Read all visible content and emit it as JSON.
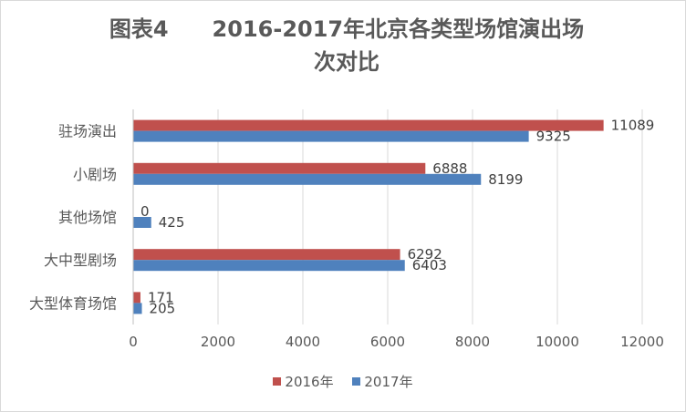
{
  "chart_data": {
    "type": "bar",
    "orientation": "horizontal",
    "title": "图表4　　2016-2017年北京各类型场馆演出场次对比",
    "title_lines": [
      "图表4　　2016-2017年北京各类型场馆演出场",
      "次对比"
    ],
    "categories": [
      "驻场演出",
      "小剧场",
      "其他场馆",
      "大中型剧场",
      "大型体育场馆"
    ],
    "series": [
      {
        "name": "2016年",
        "color": "#c0504d",
        "values": [
          11089,
          6888,
          0,
          6292,
          171
        ]
      },
      {
        "name": "2017年",
        "color": "#4f81bd",
        "values": [
          9325,
          8199,
          425,
          6403,
          205
        ]
      }
    ],
    "x_ticks": [
      "0",
      "2000",
      "4000",
      "6000",
      "8000",
      "10000",
      "12000"
    ],
    "xlim": [
      0,
      12000
    ],
    "grid": true,
    "legend_position": "bottom"
  }
}
